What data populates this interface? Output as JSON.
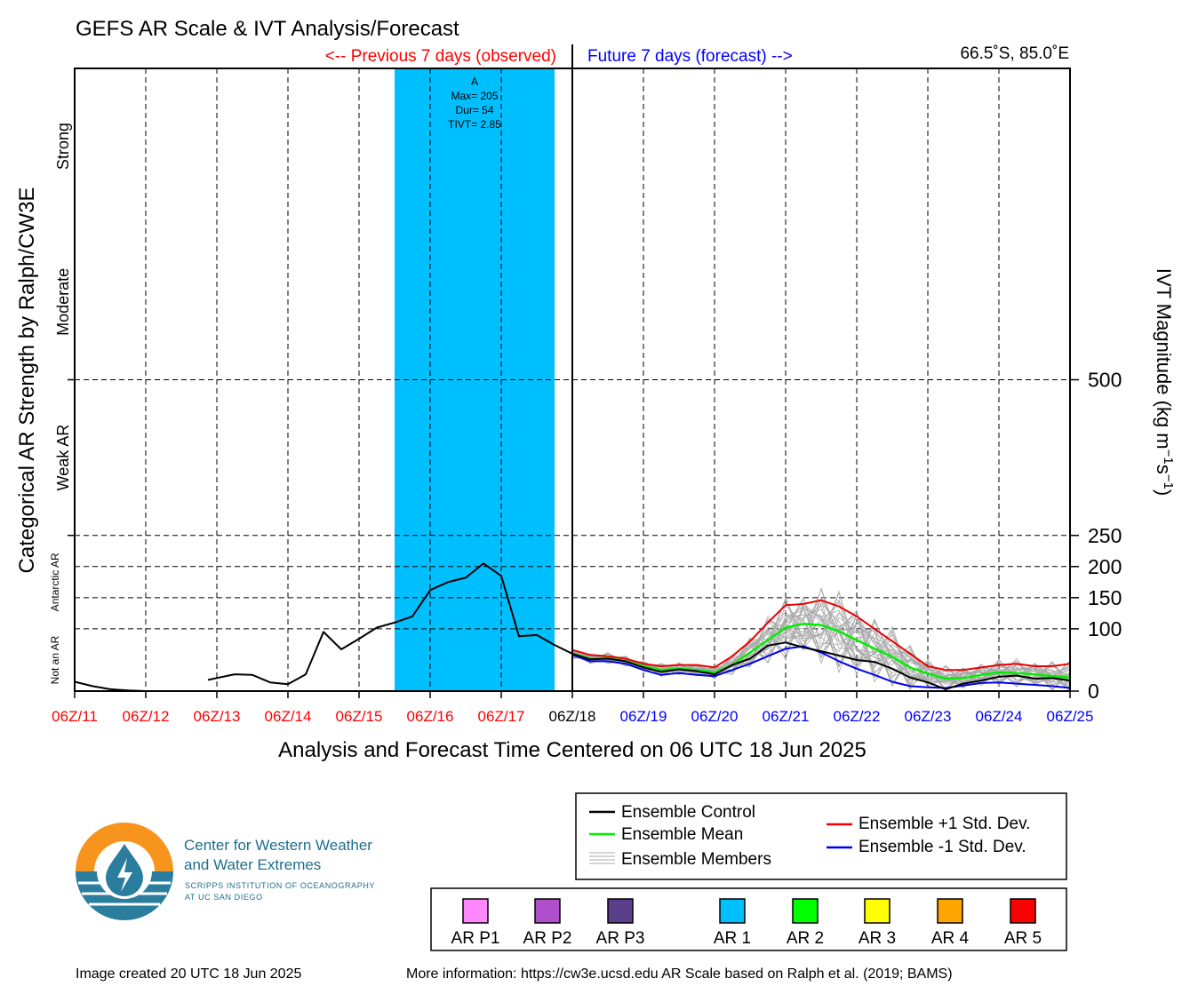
{
  "title": "GEFS AR Scale & IVT Analysis/Forecast",
  "previous_label": "<-- Previous 7 days (observed)",
  "future_label": "Future 7 days (forecast) -->",
  "location": "66.5˚S, 85.0˚E",
  "xlabel": "Analysis and Forecast Time Centered on 06 UTC 18 Jun 2025",
  "ylabel_left": "Categorical AR Strength by Ralph/CW3E",
  "ylabel_right_parts": [
    "IVT Magnitude (kg m",
    "−1",
    "s",
    "−1",
    ")"
  ],
  "categories": [
    "Not an AR",
    "Antarctic AR",
    "Weak AR",
    "Moderate",
    "Strong"
  ],
  "colors": {
    "control": "#000000",
    "mean": "#00ee00",
    "plus_std": "#ee0000",
    "minus_std": "#0000ee",
    "members": "#aaaaaa",
    "ar_band": "#00bfff",
    "past_tick": "#ff0000",
    "future_tick": "#0000ff",
    "now_tick": "#000000"
  },
  "chart_data": {
    "type": "line",
    "x_ticks": [
      "06Z/11",
      "06Z/12",
      "06Z/13",
      "06Z/14",
      "06Z/15",
      "06Z/16",
      "06Z/17",
      "06Z/18",
      "06Z/19",
      "06Z/20",
      "06Z/21",
      "06Z/22",
      "06Z/23",
      "06Z/24",
      "06Z/25"
    ],
    "y_ticks": [
      0,
      100,
      150,
      200,
      250,
      500
    ],
    "y_gridlines": [
      100,
      150,
      200,
      250,
      500
    ],
    "ylim": [
      0,
      1000
    ],
    "grid": true,
    "ar_event": {
      "label": "A",
      "max_text": "Max= 205",
      "dur_text": "Dur= 54",
      "tivt_text": "TIVT= 2.85",
      "start": "18Z/15",
      "end": "00Z/18"
    },
    "series": [
      {
        "name": "Ensemble Control",
        "color": "#000000",
        "segments": [
          {
            "x": [
              0,
              0.25,
              0.5,
              0.75,
              1.0
            ],
            "y": [
              15,
              8,
              3,
              1,
              0
            ]
          },
          {
            "x": [
              1.875,
              2.25,
              2.5,
              2.75,
              3.0,
              3.25,
              3.5,
              3.75,
              4.0,
              4.25,
              4.5,
              4.75,
              5.0,
              5.25,
              5.5,
              5.75,
              6.0,
              6.25,
              6.5,
              6.75,
              7.0
            ],
            "y": [
              18,
              27,
              26,
              14,
              11,
              27,
              95,
              67,
              84,
              102,
              110,
              120,
              162,
              175,
              182,
              205,
              185,
              88,
              90,
              74,
              60
            ]
          },
          {
            "x": [
              7.0,
              7.25,
              7.5,
              7.75,
              8.0,
              8.25,
              8.5,
              8.75,
              9.0,
              9.25,
              9.5,
              9.75,
              10.0,
              10.25,
              10.5,
              10.75,
              11.0,
              11.25,
              11.5,
              11.75,
              12.0,
              12.25,
              12.5,
              12.75,
              13.0,
              13.25,
              13.5,
              13.75,
              14.0
            ],
            "y": [
              60,
              51,
              52,
              48,
              38,
              31,
              35,
              32,
              27,
              42,
              52,
              73,
              78,
              70,
              64,
              57,
              50,
              47,
              36,
              22,
              14,
              3,
              12,
              17,
              23,
              25,
              20,
              21,
              17
            ]
          }
        ]
      },
      {
        "name": "Ensemble Mean",
        "color": "#00ee00",
        "segments": [
          {
            "x": [
              7.0,
              7.25,
              7.5,
              7.75,
              8.0,
              8.25,
              8.5,
              8.75,
              9.0,
              9.25,
              9.5,
              9.75,
              10.0,
              10.25,
              10.5,
              10.75,
              11.0,
              11.25,
              11.5,
              11.75,
              12.0,
              12.25,
              12.5,
              12.75,
              13.0,
              13.25,
              13.5,
              13.75,
              14.0
            ],
            "y": [
              60,
              52,
              53,
              48,
              40,
              34,
              36,
              34,
              30,
              42,
              62,
              82,
              102,
              108,
              106,
              96,
              82,
              68,
              55,
              38,
              28,
              20,
              21,
              26,
              30,
              29,
              27,
              24,
              22
            ]
          }
        ]
      },
      {
        "name": "Ensemble +1 Std. Dev.",
        "color": "#ee0000",
        "segments": [
          {
            "x": [
              7.0,
              7.25,
              7.5,
              7.75,
              8.0,
              8.25,
              8.5,
              8.75,
              9.0,
              9.25,
              9.5,
              9.75,
              10.0,
              10.25,
              10.5,
              10.75,
              11.0,
              11.25,
              11.5,
              11.75,
              12.0,
              12.25,
              12.5,
              12.75,
              13.0,
              13.25,
              13.5,
              13.75,
              14.0
            ],
            "y": [
              66,
              58,
              56,
              52,
              44,
              40,
              42,
              42,
              38,
              56,
              80,
              110,
              138,
              140,
              146,
              136,
              120,
              100,
              80,
              60,
              40,
              34,
              34,
              38,
              42,
              44,
              40,
              40,
              44
            ]
          }
        ]
      },
      {
        "name": "Ensemble -1 Std. Dev.",
        "color": "#0000ee",
        "segments": [
          {
            "x": [
              7.0,
              7.25,
              7.5,
              7.75,
              8.0,
              8.25,
              8.5,
              8.75,
              9.0,
              9.25,
              9.5,
              9.75,
              10.0,
              10.25,
              10.5,
              10.75,
              11.0,
              11.25,
              11.5,
              11.75,
              12.0,
              12.25,
              12.5,
              12.75,
              13.0,
              13.25,
              13.5,
              13.75,
              14.0
            ],
            "y": [
              58,
              48,
              48,
              44,
              34,
              26,
              29,
              26,
              24,
              34,
              44,
              56,
              68,
              72,
              62,
              48,
              36,
              26,
              15,
              8,
              6,
              5,
              9,
              13,
              14,
              12,
              10,
              8,
              5
            ]
          }
        ]
      }
    ],
    "members": {
      "name": "Ensemble Members",
      "x_start": 7.0,
      "x_step": 0.25,
      "count": 30
    }
  },
  "legend": {
    "control": "Ensemble Control",
    "mean": "Ensemble Mean",
    "members": "Ensemble Members",
    "plus_std": "Ensemble +1 Std. Dev.",
    "minus_std": "Ensemble -1 Std. Dev."
  },
  "ar_scale_legend": [
    {
      "label": "AR P1",
      "color": "#ff88ff"
    },
    {
      "label": "AR P2",
      "color": "#b04fcc"
    },
    {
      "label": "AR P3",
      "color": "#5a3f8a"
    },
    {
      "label": "AR 1",
      "color": "#00bfff"
    },
    {
      "label": "AR 2",
      "color": "#00ff00"
    },
    {
      "label": "AR 3",
      "color": "#ffff00"
    },
    {
      "label": "AR 4",
      "color": "#ffa500"
    },
    {
      "label": "AR 5",
      "color": "#ff0000"
    }
  ],
  "logo": {
    "title_line1": "Center for Western Weather",
    "title_line2": "and Water Extremes",
    "sub_line1": "SCRIPPS INSTITUTION OF OCEANOGRAPHY",
    "sub_line2": "AT UC SAN DIEGO",
    "orange": "#f7941d",
    "teal": "#2a7d9c"
  },
  "footer_left": "Image created 20 UTC 18 Jun 2025",
  "footer_right": "More information: https://cw3e.ucsd.edu AR Scale based on Ralph et al. (2019; BAMS)"
}
